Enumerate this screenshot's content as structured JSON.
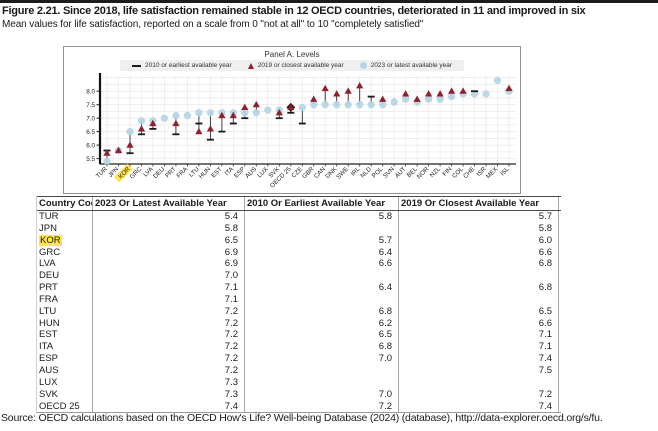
{
  "figure": {
    "title": "Figure 2.21. Since 2018, life satisfaction remained stable in 12 OECD countries, deteriorated in 11 and improved in six",
    "subtitle": "Mean values for life satisfaction, reported on a scale from 0 \"not at all\" to 10 \"completely satisfied\"",
    "source": "Source: OECD calculations based on the OECD How's Life? Well-being Database (2024) (database), http://data-explorer.oecd.org/s/fu."
  },
  "chart_data": {
    "type": "scatter",
    "panel_title": "Panel A. Levels",
    "legend": [
      {
        "label": "2010 or earliest available year",
        "marker": "dash",
        "color": "#1a1a1a"
      },
      {
        "label": "2019 or closest available year",
        "marker": "triangle",
        "color": "#8e2130"
      },
      {
        "label": "2023 or latest available year",
        "marker": "circle",
        "color": "#b5d5e6"
      }
    ],
    "ylabel": "",
    "xlabel": "",
    "ylim": [
      5.3,
      8.6
    ],
    "yticks": [
      5.5,
      6.0,
      6.5,
      7.0,
      7.5,
      8.0
    ],
    "grid": true,
    "highlight_category": "KOR",
    "highlight_color": "#ffe44d",
    "oecd_diamond_category": "OECD 25",
    "categories": [
      "TUR",
      "JPN",
      "KOR",
      "GRC",
      "LVA",
      "DEU",
      "PRT",
      "FRA",
      "LTU",
      "HUN",
      "EST",
      "ITA",
      "ESP",
      "AUS",
      "LUX",
      "SVK",
      "OECD 25",
      "CZE",
      "GBR",
      "CAN",
      "DNK",
      "SWE",
      "IRL",
      "NLD",
      "POL",
      "SVN",
      "AUT",
      "BEL",
      "NOR",
      "NZL",
      "FIN",
      "COL",
      "CHE",
      "ISR",
      "MEX",
      "ISL"
    ],
    "series": [
      {
        "name": "2010 or earliest available year",
        "values": [
          5.8,
          null,
          5.7,
          6.4,
          6.6,
          null,
          6.4,
          null,
          6.8,
          6.2,
          6.5,
          6.8,
          7.0,
          null,
          null,
          7.0,
          7.2,
          6.8,
          null,
          null,
          null,
          null,
          null,
          7.8,
          null,
          null,
          null,
          null,
          null,
          null,
          null,
          null,
          8.0,
          null,
          null,
          null
        ]
      },
      {
        "name": "2019 or closest available year",
        "values": [
          5.7,
          5.8,
          6.0,
          6.6,
          6.8,
          null,
          6.8,
          null,
          6.5,
          6.6,
          7.1,
          7.1,
          7.4,
          7.5,
          null,
          7.2,
          7.4,
          null,
          7.7,
          8.1,
          7.9,
          8.0,
          8.2,
          null,
          7.7,
          null,
          7.9,
          7.7,
          7.9,
          7.9,
          8.0,
          8.0,
          null,
          null,
          null,
          8.1
        ]
      },
      {
        "name": "2023 or latest available year",
        "values": [
          5.4,
          5.8,
          6.5,
          6.9,
          6.9,
          7.0,
          7.1,
          7.1,
          7.2,
          7.2,
          7.2,
          7.2,
          7.2,
          7.2,
          7.3,
          7.3,
          7.4,
          7.4,
          7.5,
          7.5,
          7.5,
          7.5,
          7.5,
          7.5,
          7.5,
          7.6,
          7.7,
          7.6,
          7.7,
          7.7,
          7.8,
          7.9,
          7.9,
          7.9,
          8.4,
          8.0
        ]
      }
    ]
  },
  "table": {
    "columns": [
      "Country Code",
      "2023  Or Latest Available Year",
      "2010  Or Earliest Available Year",
      "2019  Or Closest Available Year"
    ],
    "highlight_row": "KOR",
    "rows": [
      {
        "code": "TUR",
        "v2023": "5.4",
        "v2010": "5.8",
        "v2019": "5.7"
      },
      {
        "code": "JPN",
        "v2023": "5.8",
        "v2010": "",
        "v2019": "5.8"
      },
      {
        "code": "KOR",
        "v2023": "6.5",
        "v2010": "5.7",
        "v2019": "6.0"
      },
      {
        "code": "GRC",
        "v2023": "6.9",
        "v2010": "6.4",
        "v2019": "6.6"
      },
      {
        "code": "LVA",
        "v2023": "6.9",
        "v2010": "6.6",
        "v2019": "6.8"
      },
      {
        "code": "DEU",
        "v2023": "7.0",
        "v2010": "",
        "v2019": ""
      },
      {
        "code": "PRT",
        "v2023": "7.1",
        "v2010": "6.4",
        "v2019": "6.8"
      },
      {
        "code": "FRA",
        "v2023": "7.1",
        "v2010": "",
        "v2019": ""
      },
      {
        "code": "LTU",
        "v2023": "7.2",
        "v2010": "6.8",
        "v2019": "6.5"
      },
      {
        "code": "HUN",
        "v2023": "7.2",
        "v2010": "6.2",
        "v2019": "6.6"
      },
      {
        "code": "EST",
        "v2023": "7.2",
        "v2010": "6.5",
        "v2019": "7.1"
      },
      {
        "code": "ITA",
        "v2023": "7.2",
        "v2010": "6.8",
        "v2019": "7.1"
      },
      {
        "code": "ESP",
        "v2023": "7.2",
        "v2010": "7.0",
        "v2019": "7.4"
      },
      {
        "code": "AUS",
        "v2023": "7.2",
        "v2010": "",
        "v2019": "7.5"
      },
      {
        "code": "LUX",
        "v2023": "7.3",
        "v2010": "",
        "v2019": ""
      },
      {
        "code": "SVK",
        "v2023": "7.3",
        "v2010": "7.0",
        "v2019": "7.2"
      },
      {
        "code": "OECD 25",
        "v2023": "7.4",
        "v2010": "7.2",
        "v2019": "7.4"
      }
    ]
  }
}
